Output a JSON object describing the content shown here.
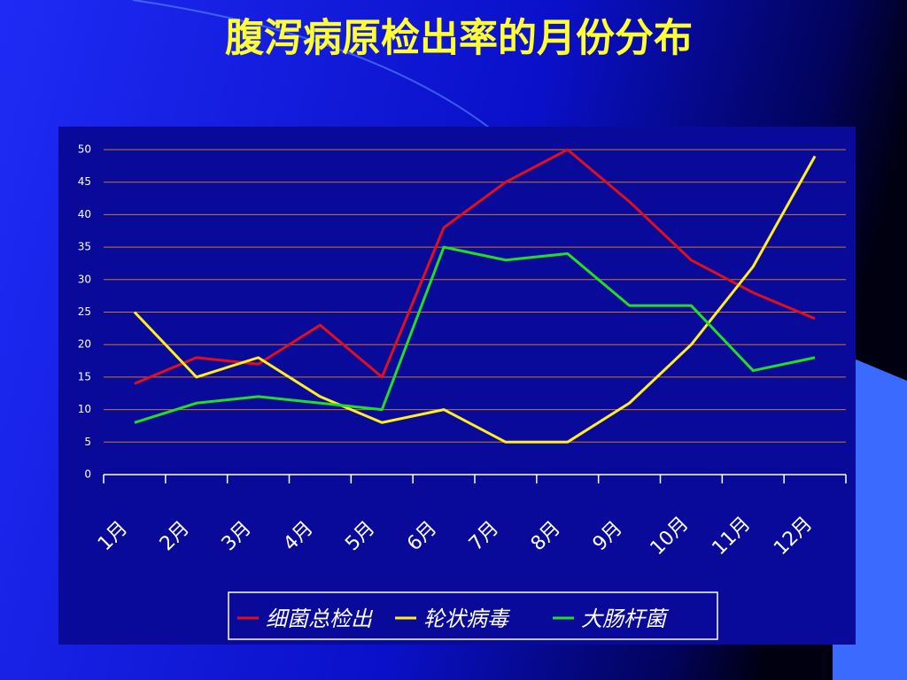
{
  "chart_data": {
    "type": "line",
    "title": "腹泻病原检出率的月份分布",
    "categories": [
      "1月",
      "2月",
      "3月",
      "4月",
      "5月",
      "6月",
      "7月",
      "8月",
      "9月",
      "10月",
      "11月",
      "12月"
    ],
    "series": [
      {
        "name": "细菌总检出",
        "color": "#e0101a",
        "values": [
          14,
          18,
          17,
          23,
          15,
          38,
          45,
          50,
          42,
          33,
          28,
          24
        ]
      },
      {
        "name": "轮状病毒",
        "color": "#ffee22",
        "values": [
          25,
          15,
          18,
          12,
          8,
          10,
          5,
          5,
          11,
          20,
          32,
          49
        ]
      },
      {
        "name": "大肠杆菌",
        "color": "#22dd22",
        "values": [
          8,
          11,
          12,
          11,
          10,
          35,
          33,
          34,
          26,
          26,
          16,
          18
        ]
      }
    ],
    "ylim": [
      0,
      50
    ],
    "yticks": [
      0,
      5,
      10,
      15,
      20,
      25,
      30,
      35,
      40,
      45,
      50
    ],
    "grid": true,
    "legend": "bottom"
  }
}
